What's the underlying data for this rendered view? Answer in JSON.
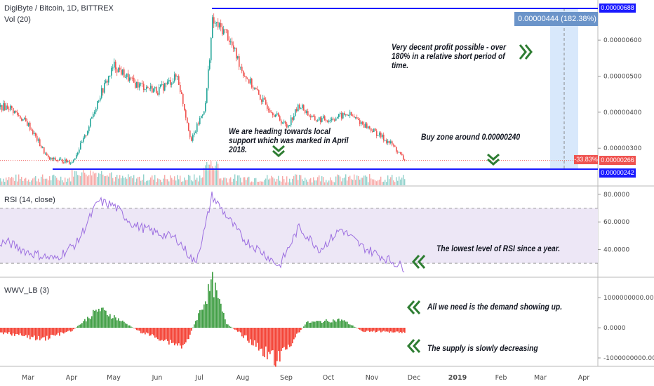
{
  "header": {
    "title": "DigiByte / Bitcoin, 1D, BITTREX",
    "vol_label": "Vol (20)",
    "rsi_label": "RSI (14, close)",
    "wwv_label": "WWV_LB (3)"
  },
  "colors": {
    "bull": "#26a69a",
    "bear": "#ef5350",
    "level_line": "#1a1aff",
    "rsi_line": "#9c6ee0",
    "rsi_band": "#ede7f6",
    "wwv_bull": "#43a047",
    "wwv_bear": "#f44336",
    "box": "#d8e8fb",
    "label_box": "#6b94c9",
    "price_tag_blue": "#1a1aff",
    "price_tag_red": "#ef5350"
  },
  "annotations": {
    "profit_box_label": "0.00000444 (182.38%) 4",
    "profit_note": "Very decent profit possible - over 180% in a relative short period of time.",
    "support_note": "We are heading towards local support which was marked in April 2018.",
    "buy_zone": "Buy zone around 0.00000240",
    "rsi_note": "The lowest level of RSI since a year.",
    "demand_note": "All we need is the demand showing up.",
    "supply_note": "The supply is slowly decreasing",
    "drop_pct": "-33.83%"
  },
  "chart_data": [
    {
      "type": "candlestick",
      "title": "DigiByte / Bitcoin, 1D, BITTREX",
      "x_months": [
        "Mar",
        "Apr",
        "May",
        "Jun",
        "Jul",
        "Aug",
        "Sep",
        "Oct",
        "Nov",
        "Dec",
        "2019",
        "Feb",
        "Mar",
        "Apr"
      ],
      "y_ticks": [
        "0.00000688",
        "0.00000600",
        "0.00000500",
        "0.00000400",
        "0.00000300",
        "0.00000266",
        "0.00000242"
      ],
      "ylim": [
        2.2e-06,
        7e-06
      ],
      "close_path": [
        {
          "date": "2018-02-15",
          "close": 4.15e-06
        },
        {
          "date": "2018-03-01",
          "close": 3.65e-06
        },
        {
          "date": "2018-03-15",
          "close": 2.7e-06
        },
        {
          "date": "2018-04-01",
          "close": 2.62e-06
        },
        {
          "date": "2018-04-10",
          "close": 3.3e-06
        },
        {
          "date": "2018-04-20",
          "close": 4.4e-06
        },
        {
          "date": "2018-05-01",
          "close": 5.3e-06
        },
        {
          "date": "2018-05-15",
          "close": 4.8e-06
        },
        {
          "date": "2018-06-01",
          "close": 4.6e-06
        },
        {
          "date": "2018-06-15",
          "close": 5e-06
        },
        {
          "date": "2018-06-25",
          "close": 3.2e-06
        },
        {
          "date": "2018-07-05",
          "close": 4.2e-06
        },
        {
          "date": "2018-07-10",
          "close": 6.5e-06
        },
        {
          "date": "2018-07-20",
          "close": 6.2e-06
        },
        {
          "date": "2018-08-01",
          "close": 5.1e-06
        },
        {
          "date": "2018-08-15",
          "close": 4.3e-06
        },
        {
          "date": "2018-09-01",
          "close": 3.6e-06
        },
        {
          "date": "2018-09-10",
          "close": 4.2e-06
        },
        {
          "date": "2018-09-20",
          "close": 3.8e-06
        },
        {
          "date": "2018-10-01",
          "close": 3.8e-06
        },
        {
          "date": "2018-10-15",
          "close": 3.95e-06
        },
        {
          "date": "2018-11-01",
          "close": 3.5e-06
        },
        {
          "date": "2018-11-15",
          "close": 3.1e-06
        },
        {
          "date": "2018-11-24",
          "close": 2.66e-06
        }
      ],
      "levels": {
        "top": 6.88e-06,
        "support": 2.42e-06,
        "current": 2.66e-06
      },
      "labels": {
        "top": "0.00000688",
        "support": "0.00000242",
        "current": "0.00000266"
      }
    },
    {
      "type": "line",
      "title": "RSI (14, close)",
      "y_ticks": [
        "80.0000",
        "60.0000",
        "40.0000"
      ],
      "ylim": [
        25,
        82
      ],
      "band": [
        30,
        70
      ],
      "series": [
        {
          "points": [
            {
              "date": "2018-02-15",
              "v": 45
            },
            {
              "date": "2018-03-01",
              "v": 38
            },
            {
              "date": "2018-03-20",
              "v": 33
            },
            {
              "date": "2018-04-05",
              "v": 45
            },
            {
              "date": "2018-04-20",
              "v": 75
            },
            {
              "date": "2018-05-01",
              "v": 72
            },
            {
              "date": "2018-05-15",
              "v": 58
            },
            {
              "date": "2018-06-01",
              "v": 52
            },
            {
              "date": "2018-06-15",
              "v": 48
            },
            {
              "date": "2018-06-28",
              "v": 30
            },
            {
              "date": "2018-07-05",
              "v": 55
            },
            {
              "date": "2018-07-10",
              "v": 79
            },
            {
              "date": "2018-07-20",
              "v": 65
            },
            {
              "date": "2018-08-01",
              "v": 48
            },
            {
              "date": "2018-08-15",
              "v": 38
            },
            {
              "date": "2018-08-27",
              "v": 28
            },
            {
              "date": "2018-09-10",
              "v": 56
            },
            {
              "date": "2018-09-25",
              "v": 40
            },
            {
              "date": "2018-10-10",
              "v": 55
            },
            {
              "date": "2018-10-25",
              "v": 42
            },
            {
              "date": "2018-11-10",
              "v": 34
            },
            {
              "date": "2018-11-24",
              "v": 27
            }
          ]
        }
      ]
    },
    {
      "type": "bar",
      "title": "WWV_LB (3)",
      "y_ticks": [
        "1000000000.0000",
        "0.0000",
        "-1000000000.0000"
      ],
      "ylim": [
        -1200000000,
        1600000000
      ],
      "series": [
        {
          "points": [
            {
              "date": "2018-02-15",
              "v": -200000000
            },
            {
              "date": "2018-03-10",
              "v": -400000000
            },
            {
              "date": "2018-04-01",
              "v": -100000000
            },
            {
              "date": "2018-04-20",
              "v": 650000000
            },
            {
              "date": "2018-05-01",
              "v": 380000000
            },
            {
              "date": "2018-05-20",
              "v": -150000000
            },
            {
              "date": "2018-06-20",
              "v": -650000000
            },
            {
              "date": "2018-07-10",
              "v": 1550000000
            },
            {
              "date": "2018-07-20",
              "v": 150000000
            },
            {
              "date": "2018-08-25",
              "v": -1150000000
            },
            {
              "date": "2018-09-15",
              "v": 180000000
            },
            {
              "date": "2018-10-10",
              "v": 280000000
            },
            {
              "date": "2018-10-25",
              "v": -120000000
            },
            {
              "date": "2018-11-24",
              "v": -150000000
            }
          ]
        }
      ]
    }
  ]
}
